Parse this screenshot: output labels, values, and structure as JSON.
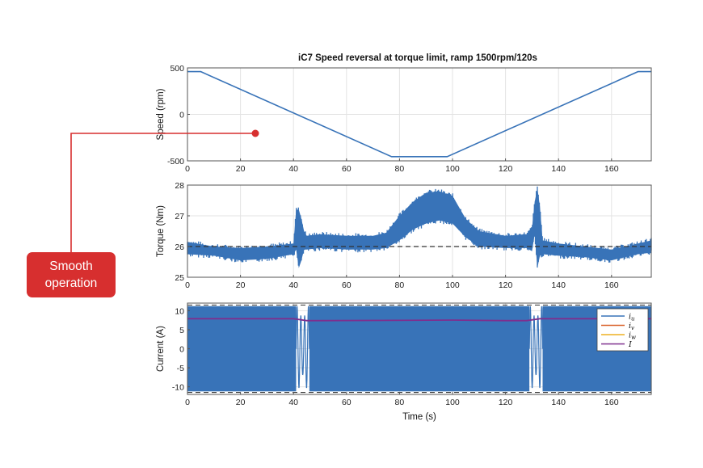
{
  "callout": {
    "line1": "Smooth",
    "line2": "operation",
    "color": "#d72f2f"
  },
  "colors": {
    "series_blue": "#3873b8",
    "series_orange": "#d9622b",
    "series_yellow": "#edb022",
    "series_purple": "#7e2f8e",
    "grid": "#e3e3e3",
    "reference_dash": "#333333"
  },
  "chart_data": [
    {
      "type": "line",
      "title": "iC7 Speed reversal at torque limit, ramp 1500rpm/120s",
      "xlabel": "",
      "ylabel": "Speed (rpm)",
      "xlim": [
        0,
        175
      ],
      "ylim": [
        -500,
        500
      ],
      "xticks": [
        0,
        20,
        40,
        60,
        80,
        100,
        120,
        140,
        160
      ],
      "yticks": [
        500,
        0,
        -500
      ],
      "grid": true,
      "series": [
        {
          "x": [
            0,
            5,
            77,
            98,
            170,
            175
          ],
          "y": [
            460,
            460,
            -455,
            -455,
            460,
            460
          ]
        }
      ]
    },
    {
      "type": "line",
      "title": "",
      "xlabel": "",
      "ylabel": "Torque (Nm)",
      "xlim": [
        0,
        175
      ],
      "ylim": [
        25,
        28
      ],
      "xticks": [
        0,
        20,
        40,
        60,
        80,
        100,
        120,
        140,
        160
      ],
      "yticks": [
        28,
        27,
        26,
        25
      ],
      "grid": true,
      "reference_line": 26,
      "series": [
        {
          "envelope_x": [
            0,
            10,
            20,
            30,
            40,
            41,
            42,
            43,
            44,
            45,
            50,
            60,
            70,
            75,
            80,
            85,
            90,
            95,
            100,
            105,
            110,
            120,
            128,
            130,
            131,
            132,
            133,
            134,
            140,
            150,
            160,
            170,
            175
          ],
          "upper": [
            26.15,
            26.0,
            25.95,
            26.0,
            26.1,
            27.2,
            27.2,
            26.9,
            26.5,
            26.35,
            26.4,
            26.35,
            26.35,
            26.45,
            27.0,
            27.45,
            27.75,
            27.8,
            27.65,
            26.9,
            26.5,
            26.35,
            26.4,
            26.6,
            27.45,
            27.9,
            27.3,
            26.2,
            26.1,
            26.0,
            25.9,
            26.1,
            26.2
          ],
          "lower": [
            25.75,
            25.7,
            25.55,
            25.6,
            25.75,
            25.9,
            25.3,
            25.55,
            25.9,
            25.9,
            25.95,
            25.9,
            25.9,
            25.95,
            26.2,
            26.55,
            26.75,
            26.85,
            26.75,
            26.3,
            26.0,
            25.95,
            25.95,
            25.85,
            26.4,
            25.3,
            25.7,
            25.75,
            25.7,
            25.65,
            25.55,
            25.75,
            25.8
          ]
        }
      ]
    },
    {
      "type": "line",
      "title": "",
      "xlabel": "Time (s)",
      "ylabel": "Current (A)",
      "xlim": [
        0,
        175
      ],
      "ylim": [
        -12,
        12
      ],
      "xticks": [
        0,
        20,
        40,
        60,
        80,
        100,
        120,
        140,
        160
      ],
      "yticks": [
        10,
        5,
        0,
        -5,
        -10
      ],
      "grid": true,
      "reference_lines": [
        11.5,
        -11.5
      ],
      "series": [
        {
          "name": "i_u",
          "legend_label": "i",
          "legend_sub": "u",
          "amplitude": 11.2
        },
        {
          "name": "i_v",
          "legend_label": "i",
          "legend_sub": "v",
          "amplitude": 11.2
        },
        {
          "name": "i_w",
          "legend_label": "i",
          "legend_sub": "w",
          "amplitude": 11.2
        },
        {
          "name": "I",
          "legend_label": "I",
          "legend_sub": "",
          "x": [
            0,
            40,
            45,
            50,
            100,
            120,
            128,
            133,
            138,
            175
          ],
          "y": [
            7.9,
            7.9,
            7.4,
            7.4,
            7.55,
            7.4,
            7.4,
            7.9,
            7.9,
            7.9
          ]
        }
      ],
      "legend_position": "top-right"
    }
  ]
}
